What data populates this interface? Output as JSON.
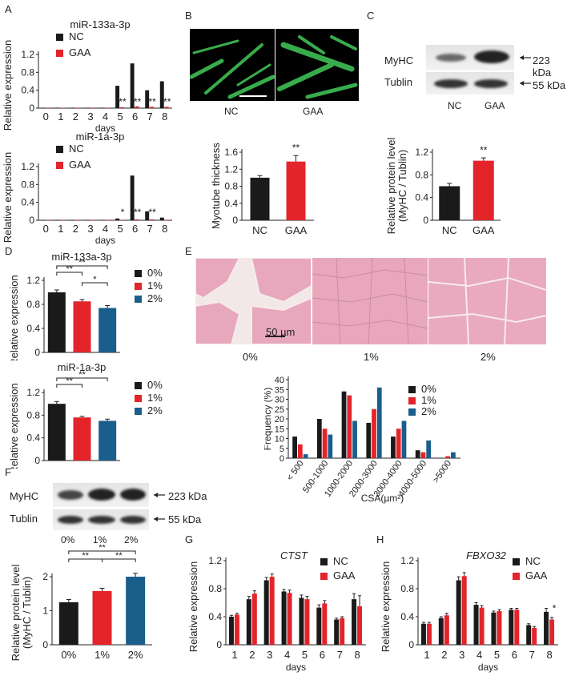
{
  "panel_letters": {
    "a": "A",
    "b": "B",
    "c": "C",
    "d": "D",
    "e": "E",
    "f": "F",
    "g": "G",
    "h": "H"
  },
  "colors": {
    "black": "#1a1a1a",
    "red": "#e3242b",
    "blue": "#1a5e8c",
    "fluor": "#3fbf55",
    "he_pink": "#e7a7bd",
    "he_pale": "#f3e8e8"
  },
  "panel_b": {
    "label_nc": "NC",
    "label_gaa": "GAA"
  },
  "panel_c": {
    "protein1": "MyHC",
    "protein2": "Tublin",
    "kda1": "223 kDa",
    "kda2": "55 kDa",
    "label_nc": "NC",
    "label_gaa": "GAA"
  },
  "panel_e": {
    "scale": "50 µm",
    "label_0": "0%",
    "label_1": "1%",
    "label_2": "2%"
  },
  "panel_f": {
    "protein1": "MyHC",
    "protein2": "Tublin",
    "kda1": "223 kDa",
    "kda2": "55 kDa",
    "lanes": [
      "0%",
      "1%",
      "2%"
    ]
  },
  "chart_data": [
    {
      "id": "A1",
      "type": "bar",
      "title": "miR-133a-3p",
      "xlabel": "days",
      "ylabel": "Relative expression",
      "categories": [
        "0",
        "1",
        "2",
        "3",
        "4",
        "5",
        "6",
        "7",
        "8"
      ],
      "ylim": [
        0,
        1.2
      ],
      "yticks": [
        "0",
        "0.4",
        "0.8",
        "1.2"
      ],
      "legend": [
        "NC",
        "GAA"
      ],
      "series": [
        {
          "name": "NC",
          "values": [
            0.01,
            0.01,
            0.01,
            0.01,
            0.01,
            0.5,
            1.0,
            0.4,
            0.6
          ]
        },
        {
          "name": "GAA",
          "values": [
            0.01,
            0.01,
            0.01,
            0.01,
            0.01,
            0.02,
            0.04,
            0.03,
            0.03
          ]
        }
      ],
      "annotations": [
        "**",
        "**",
        "**",
        "**"
      ]
    },
    {
      "id": "A2",
      "type": "bar",
      "title": "miR-1a-3p",
      "xlabel": "days",
      "ylabel": "Relative expression",
      "categories": [
        "0",
        "1",
        "2",
        "3",
        "4",
        "5",
        "6",
        "7",
        "8"
      ],
      "ylim": [
        0,
        1.2
      ],
      "yticks": [
        "0",
        "0.4",
        "0.8",
        "1.2"
      ],
      "legend": [
        "NC",
        "GAA"
      ],
      "series": [
        {
          "name": "NC",
          "values": [
            0.01,
            0.01,
            0.01,
            0.01,
            0.01,
            0.04,
            1.0,
            0.2,
            0.06
          ]
        },
        {
          "name": "GAA",
          "values": [
            0.01,
            0.01,
            0.01,
            0.01,
            0.01,
            0.01,
            0.02,
            0.02,
            0.01
          ]
        }
      ],
      "annotations": [
        "*",
        "**",
        "**"
      ]
    },
    {
      "id": "B",
      "type": "bar",
      "ylabel": "Myotube thickness",
      "categories": [
        "NC",
        "GAA"
      ],
      "values": [
        1.0,
        1.38
      ],
      "errors": [
        0.05,
        0.14
      ],
      "ylim": [
        0,
        1.6
      ],
      "yticks": [
        "0",
        "0.4",
        "0.8",
        "1.2",
        "1.6"
      ],
      "annotations": [
        "**"
      ]
    },
    {
      "id": "C",
      "type": "bar",
      "ylabel": "Relative protein level (MyHC / Tublin)",
      "categories": [
        "NC",
        "GAA"
      ],
      "values": [
        0.6,
        1.05
      ],
      "errors": [
        0.05,
        0.05
      ],
      "ylim": [
        0,
        1.2
      ],
      "yticks": [
        "0",
        "0.4",
        "0.8",
        "1.2"
      ],
      "annotations": [
        "**"
      ]
    },
    {
      "id": "D1",
      "type": "bar",
      "title": "miR-133a-3p",
      "ylabel": "Relative expression",
      "categories": [
        "0%",
        "1%",
        "2%"
      ],
      "values": [
        1.0,
        0.85,
        0.74
      ],
      "errors": [
        0.04,
        0.03,
        0.04
      ],
      "ylim": [
        0,
        1.2
      ],
      "yticks": [
        "0",
        "0.4",
        "0.8",
        "1.2"
      ],
      "legend": [
        "0%",
        "1%",
        "2%"
      ],
      "annotations": [
        "**",
        "**",
        "*"
      ]
    },
    {
      "id": "D2",
      "type": "bar",
      "title": "miR-1a-3p",
      "ylabel": "Relative expression",
      "categories": [
        "0%",
        "1%",
        "2%"
      ],
      "values": [
        1.0,
        0.76,
        0.7
      ],
      "errors": [
        0.04,
        0.02,
        0.03
      ],
      "ylim": [
        0,
        1.2
      ],
      "yticks": [
        "0",
        "0.4",
        "0.8",
        "1.2"
      ],
      "legend": [
        "0%",
        "1%",
        "2%"
      ],
      "annotations": [
        "**",
        "**"
      ]
    },
    {
      "id": "E",
      "type": "bar",
      "xlabel": "CSA(µm²)",
      "ylabel": "Frequency (%)",
      "categories": [
        "< 500",
        "500-1000",
        "1000-2000",
        "2000-3000",
        "3000-4000",
        "4000-5000",
        ">5000"
      ],
      "ylim": [
        0,
        40
      ],
      "yticks": [
        "0",
        "5",
        "10",
        "15",
        "20",
        "25",
        "30",
        "35",
        "40"
      ],
      "legend": [
        "0%",
        "1%",
        "2%"
      ],
      "series": [
        {
          "name": "0%",
          "values": [
            11,
            20,
            34,
            18,
            11,
            4,
            0
          ]
        },
        {
          "name": "1%",
          "values": [
            7,
            15,
            32,
            25,
            15,
            3,
            1
          ]
        },
        {
          "name": "2%",
          "values": [
            2,
            12,
            19,
            36,
            19,
            9,
            3
          ]
        }
      ]
    },
    {
      "id": "F",
      "type": "bar",
      "ylabel": "Relative protein level (MyHC / Tublin)",
      "categories": [
        "0%",
        "1%",
        "2%"
      ],
      "values": [
        1.25,
        1.58,
        2.0
      ],
      "errors": [
        0.08,
        0.08,
        0.1
      ],
      "ylim": [
        0,
        2
      ],
      "yticks": [
        "0",
        "1",
        "2"
      ],
      "annotations": [
        "**",
        "**",
        "**"
      ]
    },
    {
      "id": "G",
      "type": "bar",
      "title": "CTST",
      "xlabel": "days",
      "ylabel": "Relative expression",
      "categories": [
        "1",
        "2",
        "3",
        "4",
        "5",
        "6",
        "7",
        "8"
      ],
      "ylim": [
        0,
        1.2
      ],
      "yticks": [
        "0",
        "0.4",
        "0.8",
        "1.2"
      ],
      "legend": [
        "NC",
        "GAA"
      ],
      "series": [
        {
          "name": "NC",
          "values": [
            0.4,
            0.65,
            0.92,
            0.76,
            0.67,
            0.53,
            0.36,
            0.65
          ],
          "errors": [
            0.02,
            0.04,
            0.04,
            0.03,
            0.04,
            0.04,
            0.02,
            0.08
          ]
        },
        {
          "name": "GAA",
          "values": [
            0.43,
            0.73,
            0.97,
            0.74,
            0.65,
            0.59,
            0.38,
            0.55
          ],
          "errors": [
            0.02,
            0.04,
            0.04,
            0.04,
            0.04,
            0.04,
            0.02,
            0.15
          ]
        }
      ]
    },
    {
      "id": "H",
      "type": "bar",
      "title": "FBXO32",
      "xlabel": "days",
      "ylabel": "Relative expression",
      "categories": [
        "1",
        "2",
        "3",
        "4",
        "5",
        "6",
        "7",
        "8"
      ],
      "ylim": [
        0,
        1.2
      ],
      "yticks": [
        "0",
        "0.4",
        "0.8",
        "1.2"
      ],
      "legend": [
        "NC",
        "GAA"
      ],
      "series": [
        {
          "name": "NC",
          "values": [
            0.3,
            0.38,
            0.92,
            0.57,
            0.46,
            0.5,
            0.28,
            0.47
          ],
          "errors": [
            0.02,
            0.02,
            0.05,
            0.03,
            0.02,
            0.02,
            0.02,
            0.05
          ]
        },
        {
          "name": "GAA",
          "values": [
            0.3,
            0.42,
            0.98,
            0.53,
            0.48,
            0.5,
            0.24,
            0.36
          ],
          "errors": [
            0.02,
            0.03,
            0.05,
            0.03,
            0.02,
            0.02,
            0.02,
            0.03
          ]
        }
      ],
      "annotations": [
        "*"
      ]
    }
  ]
}
